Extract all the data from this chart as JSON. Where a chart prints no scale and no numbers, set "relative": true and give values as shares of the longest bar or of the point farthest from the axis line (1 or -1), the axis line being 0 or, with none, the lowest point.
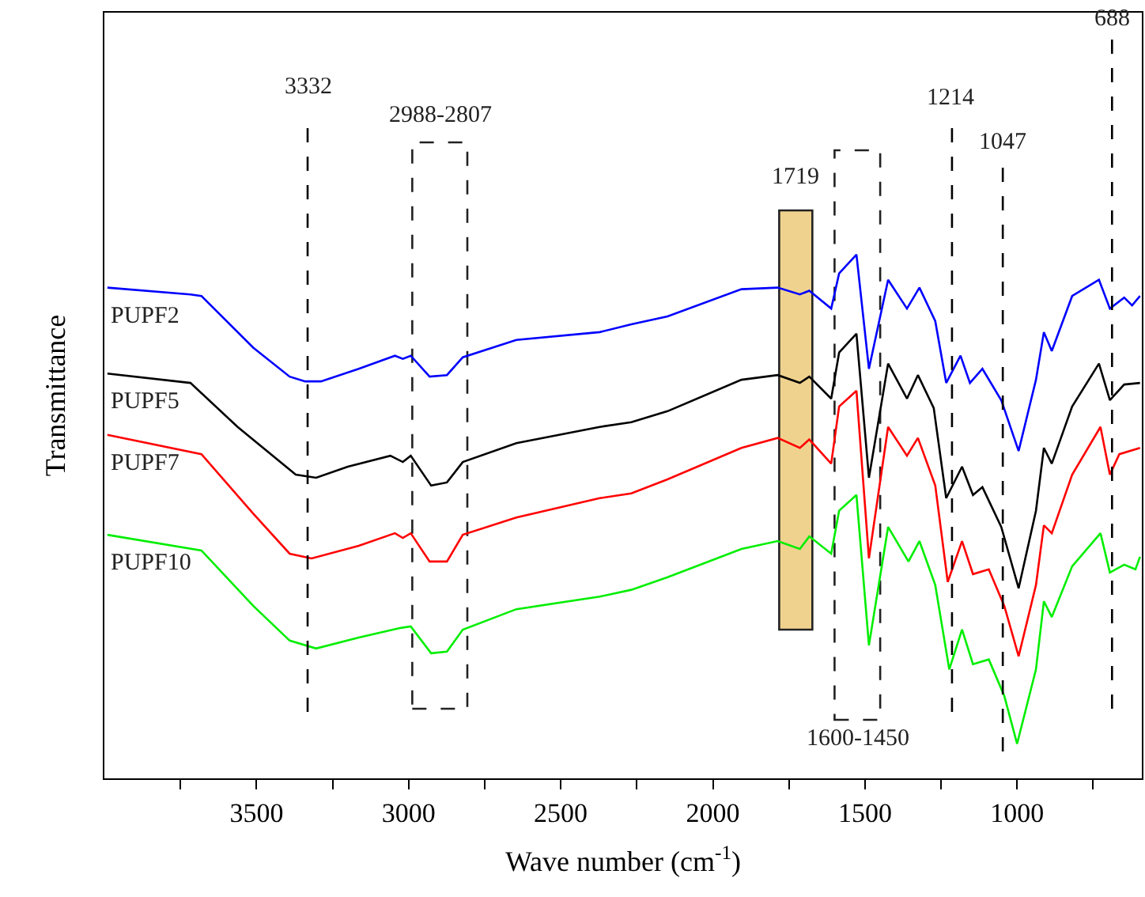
{
  "chart_data": {
    "type": "line",
    "relative": true,
    "xlabel": "Wave number (cm$^{-1}$)",
    "ylabel": "Transmittance",
    "xlim": [
      4000,
      590
    ],
    "xticks": [
      {
        "value": 3750,
        "label": null
      },
      3500,
      {
        "value": 3250,
        "label": null
      },
      3000,
      {
        "value": 2750,
        "label": null
      },
      2500,
      {
        "value": 2250,
        "label": null
      },
      2000,
      {
        "value": 1750,
        "label": null
      },
      1500,
      {
        "value": 1250,
        "label": null
      },
      1000,
      {
        "value": 750,
        "label": null
      }
    ],
    "tick_labels": "x",
    "grid": false,
    "legend": false,
    "line_style": "solid",
    "marker": "none",
    "series": [
      {
        "name": "PUPF2",
        "color": "#0000ff",
        "x": [
          3990,
          3717,
          3681,
          3510,
          3391,
          3340,
          3288,
          3164,
          3045,
          3019,
          2993,
          2931,
          2874,
          2822,
          2646,
          2372,
          2268,
          2149,
          1906,
          1787,
          1714,
          1683,
          1611,
          1585,
          1528,
          1487,
          1424,
          1362,
          1321,
          1269,
          1233,
          1186,
          1155,
          1114,
          1052,
          995,
          938,
          912,
          886,
          819,
          731,
          695,
          648,
          622,
          596
        ],
        "values": [
          0.937,
          0.924,
          0.921,
          0.822,
          0.767,
          0.758,
          0.758,
          0.782,
          0.807,
          0.801,
          0.807,
          0.767,
          0.77,
          0.804,
          0.837,
          0.852,
          0.867,
          0.882,
          0.934,
          0.937,
          0.924,
          0.931,
          0.897,
          0.964,
          1.0,
          0.782,
          0.952,
          0.897,
          0.937,
          0.873,
          0.755,
          0.807,
          0.755,
          0.782,
          0.722,
          0.625,
          0.761,
          0.852,
          0.816,
          0.921,
          0.952,
          0.897,
          0.918,
          0.903,
          0.921
        ]
      },
      {
        "name": "PUPF5",
        "color": "#000000",
        "x": [
          3990,
          3717,
          3562,
          3371,
          3304,
          3200,
          3060,
          3019,
          2993,
          2926,
          2874,
          2822,
          2646,
          2372,
          2268,
          2149,
          1906,
          1787,
          1714,
          1683,
          1611,
          1585,
          1528,
          1487,
          1424,
          1362,
          1326,
          1274,
          1233,
          1181,
          1145,
          1114,
          1052,
          995,
          938,
          912,
          886,
          819,
          731,
          695,
          648,
          596
        ],
        "values": [
          0.773,
          0.755,
          0.671,
          0.58,
          0.574,
          0.595,
          0.616,
          0.604,
          0.616,
          0.559,
          0.565,
          0.604,
          0.64,
          0.671,
          0.68,
          0.701,
          0.761,
          0.77,
          0.755,
          0.767,
          0.725,
          0.813,
          0.849,
          0.574,
          0.792,
          0.725,
          0.77,
          0.707,
          0.535,
          0.595,
          0.541,
          0.556,
          0.48,
          0.363,
          0.511,
          0.631,
          0.601,
          0.71,
          0.792,
          0.722,
          0.752,
          0.755
        ]
      },
      {
        "name": "PUPF7",
        "color": "#ff0000",
        "x": [
          3990,
          3681,
          3510,
          3391,
          3319,
          3164,
          3045,
          3019,
          2993,
          2931,
          2874,
          2822,
          2646,
          2372,
          2268,
          2149,
          1906,
          1787,
          1714,
          1683,
          1611,
          1585,
          1528,
          1487,
          1424,
          1362,
          1326,
          1269,
          1228,
          1181,
          1145,
          1093,
          1042,
          995,
          938,
          912,
          886,
          819,
          726,
          695,
          664,
          596
        ],
        "values": [
          0.656,
          0.619,
          0.505,
          0.429,
          0.42,
          0.444,
          0.468,
          0.459,
          0.468,
          0.414,
          0.414,
          0.465,
          0.498,
          0.535,
          0.544,
          0.571,
          0.631,
          0.65,
          0.631,
          0.647,
          0.601,
          0.71,
          0.74,
          0.42,
          0.671,
          0.616,
          0.65,
          0.559,
          0.375,
          0.453,
          0.39,
          0.399,
          0.329,
          0.233,
          0.369,
          0.483,
          0.468,
          0.58,
          0.671,
          0.58,
          0.619,
          0.631
        ]
      },
      {
        "name": "PUPF10",
        "color": "#00ee00",
        "x": [
          3990,
          3681,
          3510,
          3391,
          3304,
          3164,
          3029,
          2993,
          2926,
          2874,
          2822,
          2646,
          2372,
          2268,
          2149,
          1906,
          1787,
          1714,
          1683,
          1611,
          1585,
          1528,
          1487,
          1424,
          1357,
          1321,
          1269,
          1223,
          1181,
          1145,
          1093,
          1042,
          1000,
          938,
          912,
          886,
          819,
          726,
          695,
          648,
          611,
          596
        ],
        "values": [
          0.465,
          0.435,
          0.329,
          0.263,
          0.248,
          0.269,
          0.287,
          0.29,
          0.239,
          0.242,
          0.284,
          0.323,
          0.347,
          0.36,
          0.384,
          0.438,
          0.453,
          0.438,
          0.462,
          0.429,
          0.511,
          0.541,
          0.254,
          0.48,
          0.414,
          0.453,
          0.369,
          0.208,
          0.284,
          0.218,
          0.227,
          0.157,
          0.066,
          0.208,
          0.338,
          0.308,
          0.405,
          0.468,
          0.393,
          0.408,
          0.399,
          0.423
        ]
      }
    ],
    "ref_lines": [
      {
        "axis": "x",
        "value": 3332,
        "label": "3332",
        "line_style": "dashed"
      },
      {
        "axis": "x",
        "value": 1214,
        "label": "1214",
        "line_style": "dashed"
      },
      {
        "axis": "x",
        "value": 1047,
        "label": "1047",
        "line_style": "dashed"
      },
      {
        "axis": "x",
        "value": 688,
        "label": "688",
        "line_style": "dashed"
      }
    ],
    "bands": [
      {
        "axis": "x",
        "from": 2988,
        "to": 2807,
        "label": "2988-2807",
        "color": "#ffffff"
      },
      {
        "axis": "x",
        "from": 1782,
        "to": 1673,
        "label": "1719",
        "color": "#f0d28f"
      },
      {
        "axis": "x",
        "from": 1600,
        "to": 1450,
        "label": "1600-1450",
        "color": "#ffffff"
      }
    ]
  }
}
